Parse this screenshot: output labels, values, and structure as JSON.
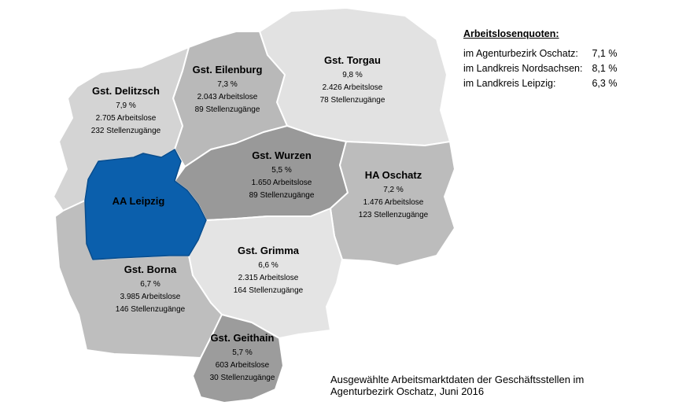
{
  "quotas": {
    "title": "Arbeitslosenquoten:",
    "rows": [
      {
        "label": "im Agenturbezirk Oschatz:",
        "value": "7,1 %"
      },
      {
        "label": "im Landkreis Nordsachsen:",
        "value": "8,1 %"
      },
      {
        "label": "im Landkreis Leipzig:",
        "value": "6,3 %"
      }
    ]
  },
  "regions": {
    "delitzsch": {
      "name": "Gst. Delitzsch",
      "rate": "7,9 %",
      "unemployed": "2.705 Arbeitslose",
      "vacancies": "232 Stellenzugänge"
    },
    "eilenburg": {
      "name": "Gst. Eilenburg",
      "rate": "7,3 %",
      "unemployed": "2.043 Arbeitslose",
      "vacancies": "89 Stellenzugänge"
    },
    "torgau": {
      "name": "Gst. Torgau",
      "rate": "9,8 %",
      "unemployed": "2.426 Arbeitslose",
      "vacancies": "78 Stellenzugänge"
    },
    "wurzen": {
      "name": "Gst.  Wurzen",
      "rate": "5,5 %",
      "unemployed": "1.650 Arbeitslose",
      "vacancies": "89 Stellenzugänge"
    },
    "oschatz": {
      "name": "HA Oschatz",
      "rate": "7,2 %",
      "unemployed": "1.476 Arbeitslose",
      "vacancies": "123 Stellenzugänge"
    },
    "leipzig": {
      "name": "AA Leipzig"
    },
    "grimma": {
      "name": "Gst. Grimma",
      "rate": "6,6 %",
      "unemployed": "2.315 Arbeitslose",
      "vacancies": "164 Stellenzugänge"
    },
    "borna": {
      "name": "Gst. Borna",
      "rate": "6,7 %",
      "unemployed": "3.985 Arbeitslose",
      "vacancies": "146 Stellenzugänge"
    },
    "geithain": {
      "name": "Gst. Geithain",
      "rate": "5,7 %",
      "unemployed": "603 Arbeitslose",
      "vacancies": "30 Stellenzugänge"
    }
  },
  "colors": {
    "leipzig": "#0b5fac",
    "dark_grey": "#999999",
    "mid_grey": "#bcbcbc",
    "light_grey": "#e2e2e2"
  },
  "caption": {
    "line1": "Ausgewählte Arbeitsmarktdaten der Geschäftsstellen im",
    "line2": "Agenturbezirk Oschatz, Juni 2016"
  }
}
